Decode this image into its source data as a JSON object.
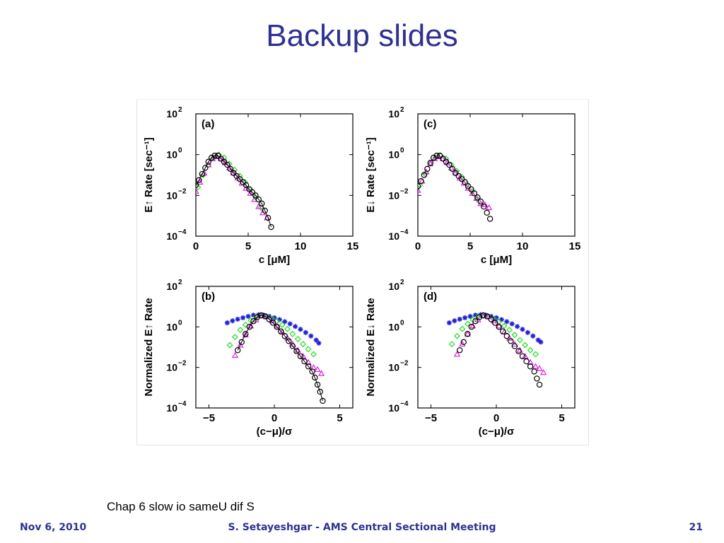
{
  "slide": {
    "title": "Backup slides",
    "caption": "Chap 6 slow io sameU dif S"
  },
  "footer": {
    "date": "Nov 6, 2010",
    "center": "S. Setayeshgar - AMS Central Sectional Meeting",
    "page": "21"
  },
  "colors": {
    "title": "#2e3192",
    "blue_series": "#1f1fd6",
    "green_series": "#22dd22",
    "magenta_series": "#e020e0",
    "black_series": "#000000"
  },
  "chart_data": [
    {
      "panel": "(a)",
      "type": "scatter",
      "xlabel": "c [μM]",
      "ylabel": "E↑ Rate [sec⁻¹]",
      "xlim": [
        0,
        15
      ],
      "ylim_log10": [
        -4,
        2
      ],
      "yscale": "log",
      "xticks": [
        "0",
        "5",
        "10",
        "15"
      ],
      "yticks": [
        "10^2",
        "10^0",
        "10^-2",
        "10^-4"
      ],
      "series": [
        {
          "marker": "diamond",
          "color": "green",
          "x": [
            0.2,
            0.7,
            1.2,
            1.7,
            2.2,
            2.7,
            3.2,
            3.7,
            4.2,
            4.7,
            5.2,
            5.7,
            6.2
          ],
          "log10_y": [
            -1.6,
            -1.0,
            -0.5,
            -0.15,
            0.0,
            -0.15,
            -0.45,
            -0.75,
            -1.05,
            -1.35,
            -1.7,
            -2.1,
            -2.6
          ]
        },
        {
          "marker": "triangle",
          "color": "magenta",
          "x": [
            0.0,
            0.4,
            0.8,
            1.2,
            1.6,
            2.0,
            2.4,
            2.8,
            3.2,
            3.6,
            4.0,
            4.4,
            4.8,
            5.2,
            5.6,
            6.0,
            6.4,
            6.8
          ],
          "log10_y": [
            -1.8,
            -1.35,
            -0.9,
            -0.5,
            -0.2,
            -0.1,
            -0.2,
            -0.4,
            -0.65,
            -0.9,
            -1.15,
            -1.4,
            -1.65,
            -1.9,
            -2.2,
            -2.55,
            -2.85,
            -3.1
          ]
        },
        {
          "marker": "circle",
          "color": "black",
          "line": true,
          "x": [
            0.0,
            0.3,
            0.6,
            0.9,
            1.2,
            1.5,
            1.8,
            2.1,
            2.4,
            2.7,
            3.0,
            3.3,
            3.6,
            3.9,
            4.2,
            4.5,
            4.8,
            5.1,
            5.4,
            5.7,
            6.0,
            6.3,
            6.6,
            6.9,
            7.2
          ],
          "log10_y": [
            -1.5,
            -1.25,
            -0.95,
            -0.65,
            -0.35,
            -0.15,
            -0.05,
            -0.05,
            -0.2,
            -0.35,
            -0.5,
            -0.7,
            -0.9,
            -1.05,
            -1.2,
            -1.35,
            -1.5,
            -1.7,
            -1.85,
            -2.0,
            -2.2,
            -2.4,
            -2.75,
            -3.1,
            -3.55
          ]
        }
      ]
    },
    {
      "panel": "(c)",
      "type": "scatter",
      "xlabel": "c [μM]",
      "ylabel": "E↓ Rate [sec⁻¹]",
      "xlim": [
        0,
        15
      ],
      "ylim_log10": [
        -4,
        2
      ],
      "yscale": "log",
      "xticks": [
        "0",
        "5",
        "10",
        "15"
      ],
      "yticks": [
        "10^2",
        "10^0",
        "10^-2",
        "10^-4"
      ],
      "series": [
        {
          "marker": "diamond",
          "color": "green",
          "x": [
            0.2,
            0.7,
            1.2,
            1.7,
            2.2,
            2.7,
            3.2,
            3.7,
            4.2,
            4.7,
            5.2,
            5.7
          ],
          "log10_y": [
            -1.5,
            -0.95,
            -0.45,
            -0.15,
            -0.05,
            -0.2,
            -0.5,
            -0.8,
            -1.1,
            -1.45,
            -1.8,
            -2.2
          ]
        },
        {
          "marker": "triangle",
          "color": "magenta",
          "x": [
            0.0,
            0.4,
            0.8,
            1.2,
            1.6,
            2.0,
            2.4,
            2.8,
            3.2,
            3.6,
            4.0,
            4.4,
            4.8,
            5.2,
            5.6,
            6.0,
            6.4,
            6.8
          ],
          "log10_y": [
            -1.75,
            -1.3,
            -0.85,
            -0.45,
            -0.2,
            -0.1,
            -0.2,
            -0.4,
            -0.65,
            -0.9,
            -1.15,
            -1.4,
            -1.65,
            -1.9,
            -2.15,
            -2.4,
            -2.45,
            -2.6
          ]
        },
        {
          "marker": "circle",
          "color": "black",
          "x": [
            0.0,
            0.3,
            0.6,
            0.9,
            1.2,
            1.5,
            1.8,
            2.1,
            2.4,
            2.7,
            3.0,
            3.3,
            3.6,
            3.9,
            4.2,
            4.5,
            4.8,
            5.1,
            5.4,
            5.7,
            6.0,
            6.3,
            6.6,
            6.9
          ],
          "log10_y": [
            -1.55,
            -1.3,
            -1.0,
            -0.7,
            -0.4,
            -0.15,
            -0.05,
            -0.05,
            -0.2,
            -0.35,
            -0.5,
            -0.7,
            -0.9,
            -1.05,
            -1.2,
            -1.35,
            -1.55,
            -1.7,
            -1.9,
            -2.1,
            -2.3,
            -2.55,
            -2.85,
            -3.15
          ]
        }
      ]
    },
    {
      "panel": "(b)",
      "type": "scatter",
      "xlabel": "(c−μ)/σ",
      "ylabel": "Normalized E↑ Rate",
      "xlim": [
        -6,
        6
      ],
      "ylim_log10": [
        -4,
        2
      ],
      "yscale": "log",
      "xticks": [
        "−5",
        "0",
        "5"
      ],
      "yticks": [
        "10^2",
        "10^0",
        "10^-2",
        "10^-4"
      ],
      "series": [
        {
          "marker": "asterisk",
          "color": "blue",
          "x": [
            -3.6,
            -3.2,
            -2.8,
            -2.4,
            -2.0,
            -1.6,
            -1.2,
            -0.8,
            -0.4,
            0.0,
            0.4,
            0.8,
            1.2,
            1.6,
            2.0,
            2.4,
            2.8,
            3.2,
            3.4
          ],
          "log10_y": [
            0.2,
            0.3,
            0.38,
            0.45,
            0.52,
            0.58,
            0.6,
            0.58,
            0.52,
            0.45,
            0.36,
            0.26,
            0.15,
            0.02,
            -0.12,
            -0.28,
            -0.45,
            -0.65,
            -0.8
          ]
        },
        {
          "marker": "diamond",
          "color": "green",
          "x": [
            -3.4,
            -3.0,
            -2.6,
            -2.2,
            -1.8,
            -1.4,
            -1.0,
            -0.6,
            -0.2,
            0.2,
            0.6,
            1.0,
            1.4,
            1.8,
            2.2,
            2.6,
            3.0
          ],
          "log10_y": [
            -0.9,
            -0.5,
            -0.15,
            0.1,
            0.32,
            0.48,
            0.55,
            0.52,
            0.42,
            0.28,
            0.1,
            -0.1,
            -0.35,
            -0.6,
            -0.85,
            -1.1,
            -1.35
          ]
        },
        {
          "marker": "triangle",
          "color": "magenta",
          "x": [
            -3.0,
            -2.6,
            -2.2,
            -1.8,
            -1.4,
            -1.0,
            -0.6,
            -0.2,
            0.2,
            0.6,
            1.0,
            1.4,
            1.8,
            2.2,
            2.6,
            3.0,
            3.3,
            3.6
          ],
          "log10_y": [
            -1.4,
            -0.9,
            -0.4,
            0.05,
            0.35,
            0.55,
            0.5,
            0.3,
            0.05,
            -0.25,
            -0.55,
            -0.85,
            -1.15,
            -1.45,
            -1.75,
            -2.0,
            -2.1,
            -2.3
          ]
        },
        {
          "marker": "circle",
          "color": "black",
          "line": true,
          "x": [
            -2.8,
            -2.5,
            -2.2,
            -1.9,
            -1.6,
            -1.3,
            -1.0,
            -0.7,
            -0.4,
            -0.1,
            0.2,
            0.5,
            0.8,
            1.1,
            1.4,
            1.7,
            2.0,
            2.3,
            2.6,
            2.9,
            3.1,
            3.3,
            3.5,
            3.7
          ],
          "log10_y": [
            -1.15,
            -0.75,
            -0.35,
            0.0,
            0.28,
            0.48,
            0.57,
            0.52,
            0.38,
            0.2,
            0.0,
            -0.22,
            -0.45,
            -0.7,
            -0.95,
            -1.2,
            -1.45,
            -1.7,
            -1.95,
            -2.2,
            -2.5,
            -2.85,
            -3.2,
            -3.65
          ]
        }
      ]
    },
    {
      "panel": "(d)",
      "type": "scatter",
      "xlabel": "(c−μ)/σ",
      "ylabel": "Normalized E↓ Rate",
      "xlim": [
        -6,
        6
      ],
      "ylim_log10": [
        -4,
        2
      ],
      "yscale": "log",
      "xticks": [
        "−5",
        "0",
        "5"
      ],
      "yticks": [
        "10^2",
        "10^0",
        "10^-2",
        "10^-4"
      ],
      "series": [
        {
          "marker": "asterisk",
          "color": "blue",
          "x": [
            -3.6,
            -3.2,
            -2.8,
            -2.4,
            -2.0,
            -1.6,
            -1.2,
            -0.8,
            -0.4,
            0.0,
            0.4,
            0.8,
            1.2,
            1.6,
            2.0,
            2.4,
            2.8,
            3.2,
            3.4
          ],
          "log10_y": [
            0.2,
            0.3,
            0.38,
            0.45,
            0.52,
            0.58,
            0.6,
            0.58,
            0.52,
            0.45,
            0.36,
            0.26,
            0.15,
            0.02,
            -0.12,
            -0.28,
            -0.45,
            -0.65,
            -0.75
          ]
        },
        {
          "marker": "diamond",
          "color": "green",
          "x": [
            -3.4,
            -3.0,
            -2.6,
            -2.2,
            -1.8,
            -1.4,
            -1.0,
            -0.6,
            -0.2,
            0.2,
            0.6,
            1.0,
            1.4,
            1.8,
            2.2,
            2.6,
            3.0
          ],
          "log10_y": [
            -0.85,
            -0.45,
            -0.1,
            0.15,
            0.35,
            0.5,
            0.55,
            0.5,
            0.4,
            0.25,
            0.05,
            -0.15,
            -0.4,
            -0.65,
            -0.9,
            -1.15,
            -1.35
          ]
        },
        {
          "marker": "triangle",
          "color": "magenta",
          "x": [
            -3.0,
            -2.6,
            -2.2,
            -1.8,
            -1.4,
            -1.0,
            -0.6,
            -0.2,
            0.2,
            0.6,
            1.0,
            1.4,
            1.8,
            2.2,
            2.6,
            3.0,
            3.3,
            3.6
          ],
          "log10_y": [
            -1.35,
            -0.85,
            -0.35,
            0.05,
            0.35,
            0.55,
            0.5,
            0.3,
            0.05,
            -0.25,
            -0.55,
            -0.85,
            -1.15,
            -1.45,
            -1.75,
            -1.95,
            -2.05,
            -2.25
          ]
        },
        {
          "marker": "circle",
          "color": "black",
          "x": [
            -2.8,
            -2.5,
            -2.2,
            -1.9,
            -1.6,
            -1.3,
            -1.0,
            -0.7,
            -0.4,
            -0.1,
            0.2,
            0.5,
            0.8,
            1.1,
            1.4,
            1.7,
            2.0,
            2.3,
            2.6,
            2.9,
            3.1,
            3.3
          ],
          "log10_y": [
            -1.15,
            -0.75,
            -0.35,
            0.0,
            0.28,
            0.48,
            0.57,
            0.52,
            0.38,
            0.2,
            0.0,
            -0.22,
            -0.45,
            -0.7,
            -0.95,
            -1.2,
            -1.45,
            -1.7,
            -1.95,
            -2.2,
            -2.55,
            -2.85
          ]
        }
      ]
    }
  ]
}
